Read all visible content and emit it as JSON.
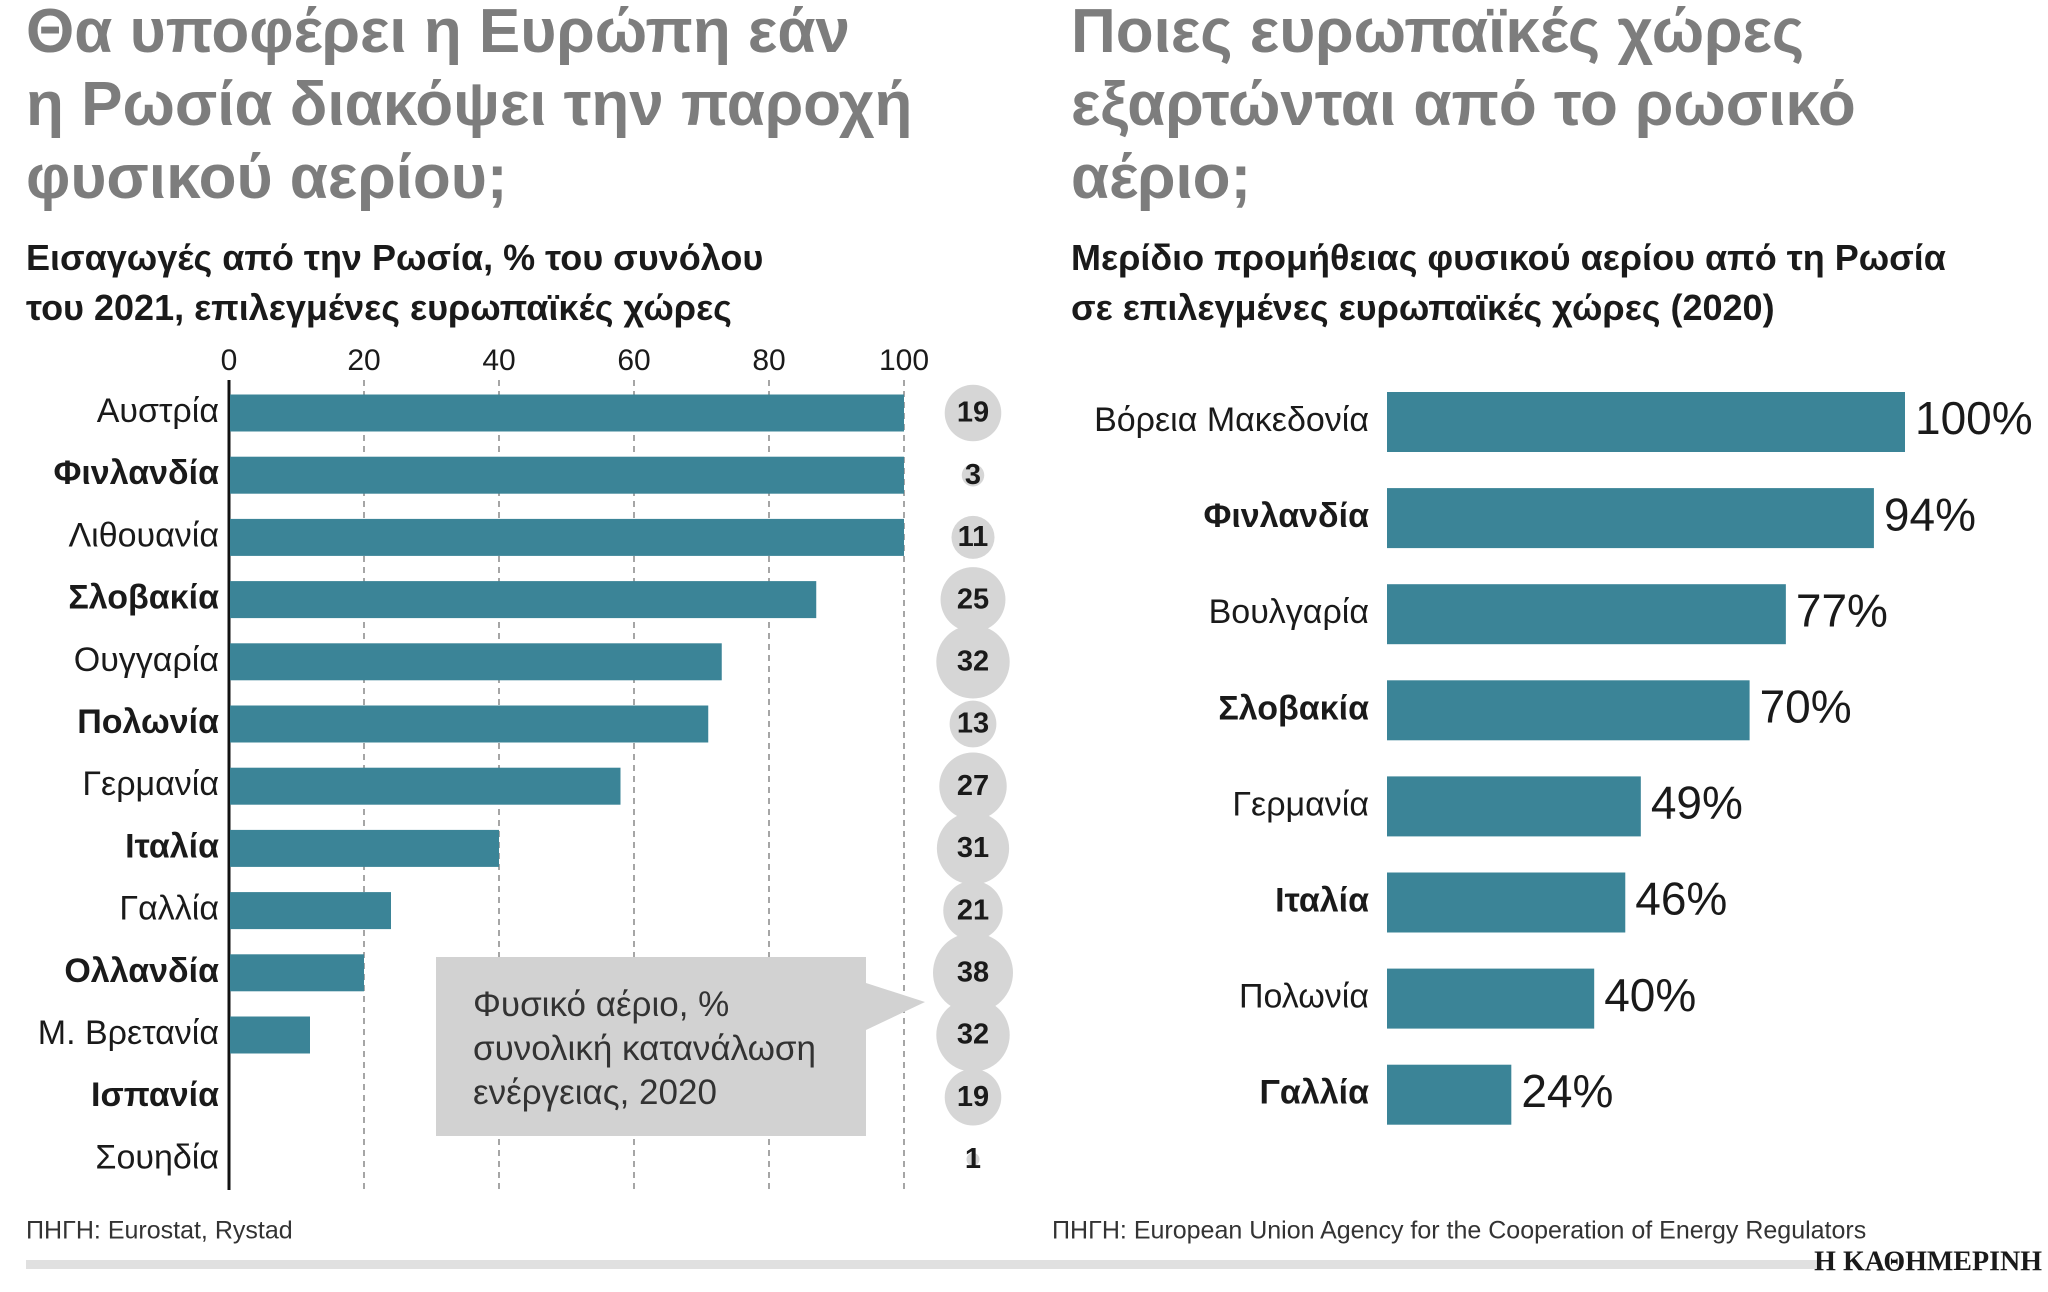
{
  "chart_data": [
    {
      "type": "bar",
      "title": [
        "Θα υποφέρει η Ευρώπη εάν",
        "η Ρωσία διακόψει την παροχή",
        "φυσικού αερίου;"
      ],
      "subtitle": [
        "Εισαγωγές από την Ρωσία, % του συνόλου",
        "του 2021, επιλεγμένες ευρωπαϊκές χώρες"
      ],
      "categories": [
        "Αυστρία",
        "Φινλανδία",
        "Λιθουανία",
        "Σλοβακία",
        "Ουγγαρία",
        "Πολωνία",
        "Γερμανία",
        "Ιταλία",
        "Γαλλία",
        "Ολλανδία",
        "Μ. Βρετανία",
        "Ισπανία",
        "Σουηδία"
      ],
      "values": [
        100,
        100,
        100,
        87,
        73,
        71,
        58,
        40,
        24,
        20,
        12,
        0,
        0
      ],
      "color": "#3b8497",
      "xlim": [
        0,
        100
      ],
      "xticks": [
        0,
        20,
        40,
        60,
        80,
        100
      ],
      "grid": true,
      "bubbles": {
        "label": [
          "Φυσικό αέριο, %",
          "συνολική κατανάλωση",
          "ενέργειας, 2020"
        ],
        "values": [
          19,
          3,
          11,
          25,
          32,
          13,
          27,
          31,
          21,
          38,
          32,
          19,
          1
        ],
        "color": "#d6d6d6"
      },
      "source": "ΠΗΓΗ: Eurostat, Rystad"
    },
    {
      "type": "bar",
      "title": [
        "Ποιες ευρωπαϊκές χώρες",
        "εξαρτώνται από το ρωσικό",
        "αέριο;"
      ],
      "subtitle": [
        "Μερίδιο προμήθειας φυσικού αερίου από τη Ρωσία",
        "σε επιλεγμένες ευρωπαϊκές χώρες (2020)"
      ],
      "categories": [
        "Βόρεια Μακεδονία",
        "Φινλανδία",
        "Βουλγαρία",
        "Σλοβακία",
        "Γερμανία",
        "Ιταλία",
        "Πολωνία",
        "Γαλλία"
      ],
      "values": [
        100,
        94,
        77,
        70,
        49,
        46,
        40,
        24
      ],
      "value_labels": [
        "100%",
        "94%",
        "77%",
        "70%",
        "49%",
        "46%",
        "40%",
        "24%"
      ],
      "color": "#3b8497",
      "source": "ΠΗΓΗ: European Union Agency for the Cooperation of Energy Regulators"
    }
  ],
  "publisher": "Η ΚΑΘΗΜΕΡΙΝΗ"
}
